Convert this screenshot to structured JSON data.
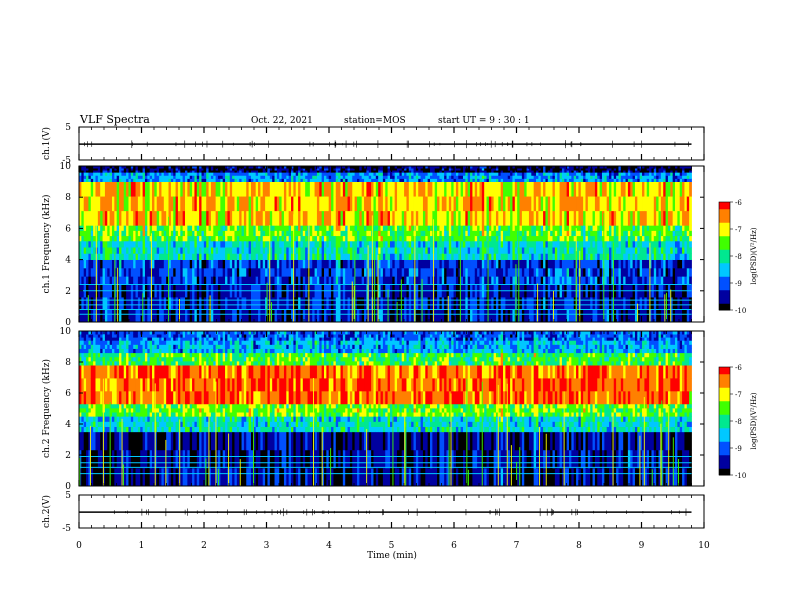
{
  "header": {
    "title": "VLF Spectra",
    "date": "Oct. 22, 2021",
    "station": "station=MOS",
    "start": "start UT =  9 : 30 : 1"
  },
  "chart_data": [
    {
      "type": "line",
      "panel": "ch1-waveform",
      "ylabel": "ch.1(V)",
      "ylim": [
        -5,
        5
      ],
      "yticks": [
        "5",
        "-5"
      ],
      "xlim": [
        0,
        10
      ],
      "series": [
        {
          "x": [
            0,
            9.8
          ],
          "values": [
            -0.2,
            -0.2
          ]
        }
      ]
    },
    {
      "type": "heatmap",
      "panel": "ch1-spectrogram",
      "ylabel": "ch.1 Frequency (kHz)",
      "xlim": [
        0,
        10
      ],
      "ylim": [
        0,
        10
      ],
      "yticks": [
        "0",
        "2",
        "4",
        "6",
        "8",
        "10"
      ],
      "bands": [
        {
          "from": 0,
          "to": 2.4,
          "level": "-9.5"
        },
        {
          "from": 2.4,
          "to": 4.0,
          "level": "-9.2"
        },
        {
          "from": 4.0,
          "to": 5.2,
          "level": "-8.3"
        },
        {
          "from": 5.2,
          "to": 6.2,
          "level": "-7.6"
        },
        {
          "from": 6.2,
          "to": 9.0,
          "level": "-6.9"
        },
        {
          "from": 9.0,
          "to": 9.6,
          "level": "-8.8"
        },
        {
          "from": 9.6,
          "to": 10,
          "level": "-9.8"
        }
      ],
      "lines_khz": [
        0.5,
        0.8,
        1.1,
        1.4,
        2.0,
        2.4
      ],
      "colorbar": {
        "label": "log(PSD)(V²/Hz)",
        "ticks": [
          "-6",
          "-7",
          "-8",
          "-9",
          "-10"
        ],
        "range": [
          -10,
          -6
        ]
      }
    },
    {
      "type": "heatmap",
      "panel": "ch2-spectrogram",
      "ylabel": "ch.2 Frequency (kHz)",
      "xlim": [
        0,
        10
      ],
      "ylim": [
        0,
        10
      ],
      "yticks": [
        "0",
        "2",
        "4",
        "6",
        "8",
        "10"
      ],
      "bands": [
        {
          "from": 0,
          "to": 3.5,
          "level": "-9.6"
        },
        {
          "from": 3.5,
          "to": 4.5,
          "level": "-8.3"
        },
        {
          "from": 4.5,
          "to": 5.3,
          "level": "-7.5"
        },
        {
          "from": 5.3,
          "to": 7.8,
          "level": "-6.4"
        },
        {
          "from": 7.8,
          "to": 8.6,
          "level": "-7.7"
        },
        {
          "from": 8.6,
          "to": 9.4,
          "level": "-8.6"
        },
        {
          "from": 9.4,
          "to": 10,
          "level": "-9.0"
        }
      ],
      "lines_khz": [
        0.8,
        1.2,
        1.5,
        1.9
      ],
      "colorbar": {
        "label": "log(PSD)(V²/Hz)",
        "ticks": [
          "-6",
          "-7",
          "-8",
          "-9",
          "-10"
        ],
        "range": [
          -10,
          -6
        ]
      }
    },
    {
      "type": "line",
      "panel": "ch2-waveform",
      "ylabel": "ch.2(V)",
      "ylim": [
        -5,
        5
      ],
      "yticks": [
        "5",
        "-5"
      ],
      "xlim": [
        0,
        10
      ],
      "series": [
        {
          "x": [
            0,
            9.8
          ],
          "values": [
            -0.2,
            -0.2
          ]
        }
      ]
    }
  ],
  "xaxis": {
    "label": "Time (min)",
    "ticks": [
      "0",
      "1",
      "2",
      "3",
      "4",
      "5",
      "6",
      "7",
      "8",
      "9",
      "10"
    ]
  },
  "colors": {
    "-10": "#000000",
    "-9.5": "#0000a0",
    "-9": "#0050ff",
    "-8.5": "#00c8ff",
    "-8": "#00e890",
    "-7.5": "#40ff00",
    "-7": "#ffff00",
    "-6.5": "#ff8000",
    "-6": "#ff0000"
  }
}
